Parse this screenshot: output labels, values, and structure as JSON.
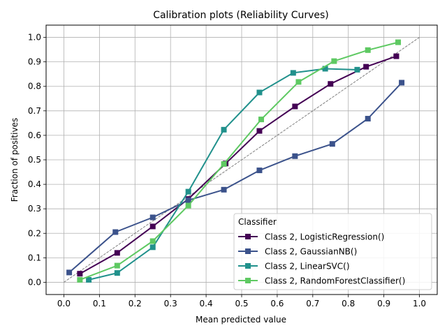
{
  "chart_data": {
    "type": "line",
    "title": "Calibration plots (Reliability Curves)",
    "xlabel": "Mean predicted value",
    "ylabel": "Fraction of positives",
    "xlim": [
      -0.05,
      1.05
    ],
    "ylim": [
      -0.05,
      1.05
    ],
    "xticks": [
      0.0,
      0.1,
      0.2,
      0.3,
      0.4,
      0.5,
      0.6,
      0.7,
      0.8,
      0.9,
      1.0
    ],
    "yticks": [
      0.0,
      0.1,
      0.2,
      0.3,
      0.4,
      0.5,
      0.6,
      0.7,
      0.8,
      0.9,
      1.0
    ],
    "xtick_labels": [
      "0.0",
      "0.1",
      "0.2",
      "0.3",
      "0.4",
      "0.5",
      "0.6",
      "0.7",
      "0.8",
      "0.9",
      "1.0"
    ],
    "ytick_labels": [
      "0.0",
      "0.1",
      "0.2",
      "0.3",
      "0.4",
      "0.5",
      "0.6",
      "0.7",
      "0.8",
      "0.9",
      "1.0"
    ],
    "grid": true,
    "reference_line": {
      "x": [
        0,
        1
      ],
      "y": [
        0,
        1
      ],
      "style": "dashed",
      "color": "#808080"
    },
    "legend": {
      "title": "Classifier",
      "placement": "lower-right"
    },
    "series": [
      {
        "name": "Class 2, LogisticRegression()",
        "color": "#440154",
        "x": [
          0.045,
          0.15,
          0.25,
          0.35,
          0.455,
          0.55,
          0.65,
          0.75,
          0.85,
          0.935
        ],
        "y": [
          0.035,
          0.12,
          0.228,
          0.34,
          0.485,
          0.618,
          0.718,
          0.81,
          0.88,
          0.923
        ]
      },
      {
        "name": "Class 2, GaussianNB()",
        "color": "#3b528b",
        "x": [
          0.015,
          0.145,
          0.25,
          0.35,
          0.45,
          0.55,
          0.65,
          0.755,
          0.855,
          0.95
        ],
        "y": [
          0.04,
          0.205,
          0.265,
          0.335,
          0.378,
          0.457,
          0.515,
          0.565,
          0.668,
          0.815
        ]
      },
      {
        "name": "Class 2, LinearSVC()",
        "color": "#21918c",
        "x": [
          0.07,
          0.15,
          0.25,
          0.35,
          0.45,
          0.55,
          0.645,
          0.735,
          0.825
        ],
        "y": [
          0.01,
          0.038,
          0.143,
          0.37,
          0.623,
          0.775,
          0.855,
          0.872,
          0.868
        ]
      },
      {
        "name": "Class 2, RandomForestClassifier()",
        "color": "#5ec962",
        "x": [
          0.045,
          0.15,
          0.25,
          0.35,
          0.45,
          0.555,
          0.66,
          0.76,
          0.855,
          0.94
        ],
        "y": [
          0.01,
          0.068,
          0.168,
          0.313,
          0.483,
          0.665,
          0.818,
          0.903,
          0.948,
          0.98
        ]
      }
    ]
  }
}
